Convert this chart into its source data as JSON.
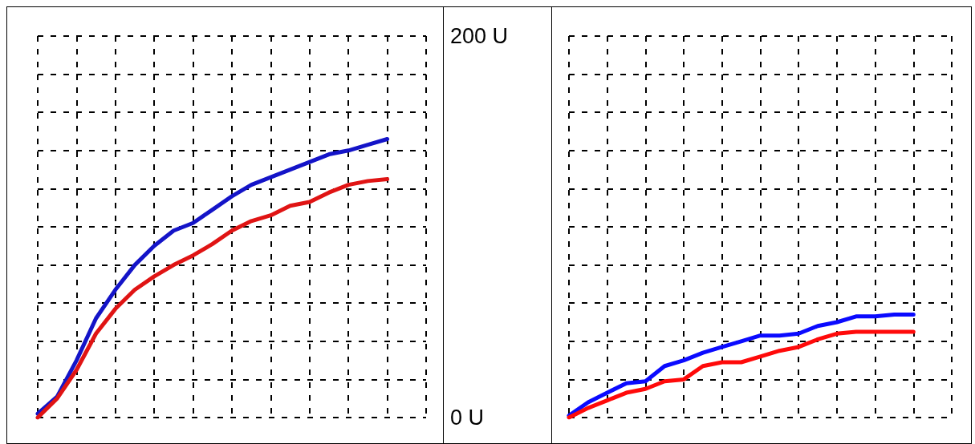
{
  "chart_data": [
    {
      "type": "line",
      "categories": [
        null,
        null,
        null,
        null,
        null,
        null,
        null,
        null,
        null,
        null,
        null,
        null,
        null,
        null,
        null,
        null,
        null,
        null,
        null,
        null,
        null
      ],
      "series": [
        {
          "color": "#1414c8",
          "values": [
            2,
            11,
            30,
            52,
            67,
            80,
            90,
            98,
            102,
            109,
            116,
            122,
            126,
            130,
            134,
            138,
            140,
            143,
            146,
            null,
            null
          ]
        },
        {
          "color": "#e01414",
          "values": [
            0,
            10,
            25,
            44,
            57,
            67,
            74,
            80,
            85,
            91,
            98,
            103,
            106,
            111,
            113,
            118,
            122,
            124,
            125,
            null,
            null
          ]
        }
      ],
      "ylim": [
        0,
        200
      ],
      "yticks": [
        {
          "value": 0,
          "label": "0 U"
        },
        {
          "value": 20,
          "label": null
        },
        {
          "value": 40,
          "label": null
        },
        {
          "value": 60,
          "label": null
        },
        {
          "value": 80,
          "label": null
        },
        {
          "value": 100,
          "label": null
        },
        {
          "value": 120,
          "label": null
        },
        {
          "value": 140,
          "label": null
        },
        {
          "value": 160,
          "label": null
        },
        {
          "value": 180,
          "label": null
        },
        {
          "value": 200,
          "label": "200 U"
        }
      ],
      "tick_labels": "y",
      "grid": true,
      "marker": "none",
      "line_style": "solid"
    },
    {
      "type": "line",
      "categories": [
        null,
        null,
        null,
        null,
        null,
        null,
        null,
        null,
        null,
        null,
        null,
        null,
        null,
        null,
        null,
        null,
        null,
        null,
        null,
        null,
        null
      ],
      "series": [
        {
          "color": "#0a0aff",
          "values": [
            1,
            8,
            13,
            18,
            19,
            27,
            30,
            34,
            37,
            40,
            43,
            43,
            44,
            48,
            50,
            53,
            53,
            54,
            54,
            null,
            null
          ]
        },
        {
          "color": "#ff0a0a",
          "values": [
            0,
            5,
            9,
            13,
            15,
            19,
            20,
            27,
            29,
            29,
            32,
            35,
            37,
            41,
            44,
            45,
            45,
            45,
            45,
            null,
            null
          ]
        }
      ],
      "ylim": [
        0,
        200
      ],
      "yticks": [
        {
          "value": 0,
          "label": null
        },
        {
          "value": 20,
          "label": null
        },
        {
          "value": 40,
          "label": null
        },
        {
          "value": 60,
          "label": null
        },
        {
          "value": 80,
          "label": null
        },
        {
          "value": 100,
          "label": null
        },
        {
          "value": 120,
          "label": null
        },
        {
          "value": 140,
          "label": null
        },
        {
          "value": 160,
          "label": null
        },
        {
          "value": 180,
          "label": null
        },
        {
          "value": 200,
          "label": null
        }
      ],
      "tick_labels": false,
      "grid": true,
      "marker": "none",
      "line_style": "solid"
    }
  ]
}
